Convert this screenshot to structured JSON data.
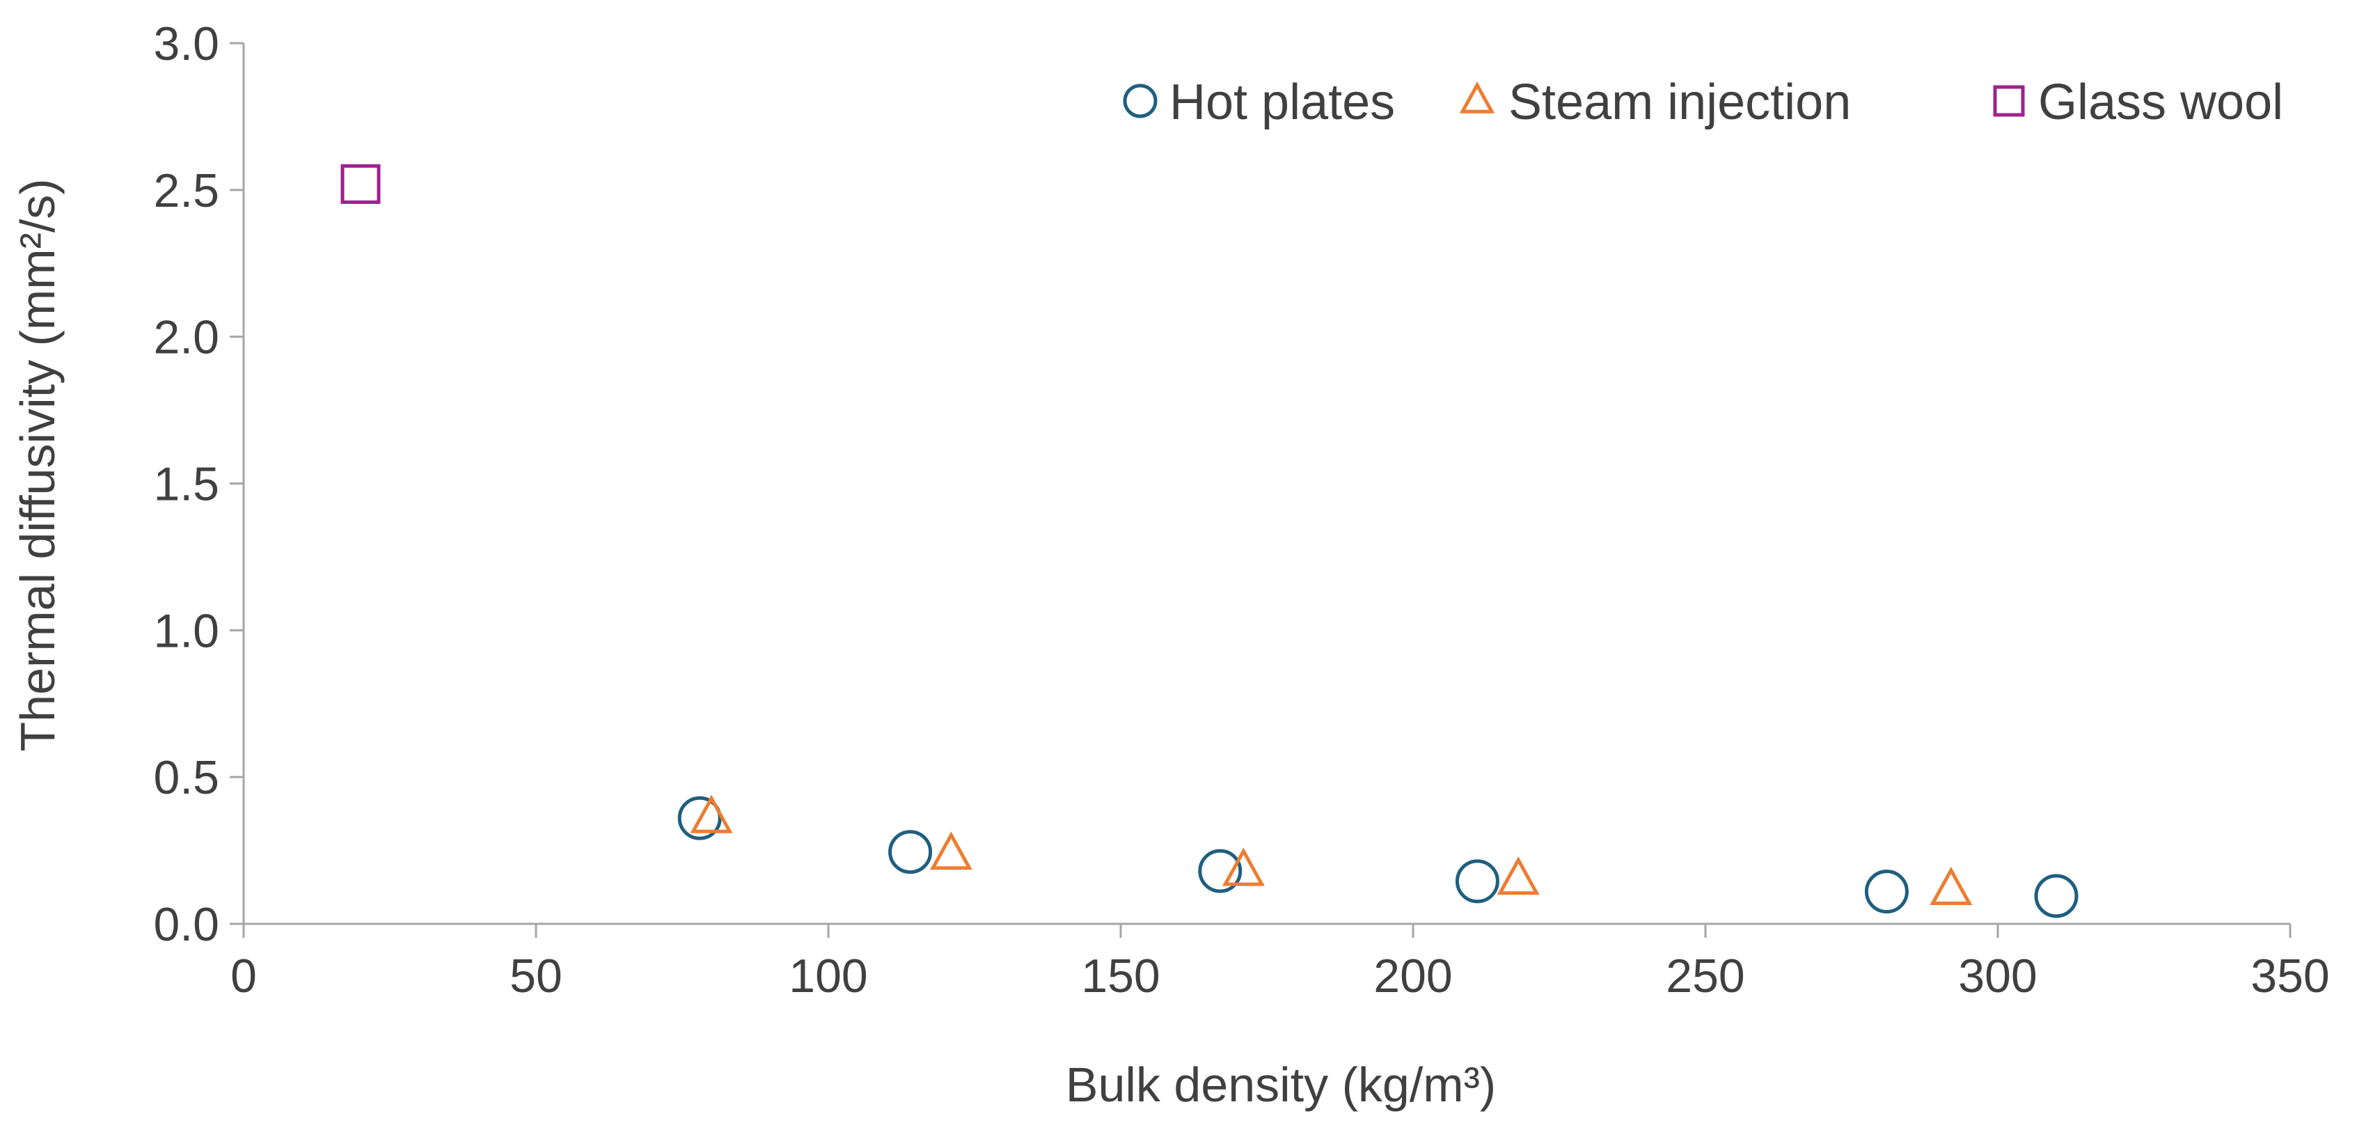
{
  "chart_data": {
    "type": "scatter",
    "title": "",
    "xlabel": "Bulk density (kg/m³)",
    "ylabel": "Thermal diffusivity (mm²/s)",
    "xlim": [
      0,
      350
    ],
    "ylim": [
      0,
      3.0
    ],
    "xticks": [
      0,
      50,
      100,
      150,
      200,
      250,
      300,
      350
    ],
    "yticks": [
      0.0,
      0.5,
      1.0,
      1.5,
      2.0,
      2.5,
      3.0
    ],
    "xtick_labels": [
      "0",
      "50",
      "100",
      "150",
      "200",
      "250",
      "300",
      "350"
    ],
    "ytick_labels": [
      "0.0",
      "0.5",
      "1.0",
      "1.5",
      "2.0",
      "2.5",
      "3.0"
    ],
    "grid": false,
    "legend_position": "top-right",
    "series": [
      {
        "name": "Hot plates",
        "marker": "circle",
        "color": "#1f5f7f",
        "x": [
          78,
          114,
          167,
          211,
          281,
          310
        ],
        "y": [
          0.36,
          0.245,
          0.18,
          0.145,
          0.11,
          0.095
        ]
      },
      {
        "name": "Steam injection",
        "marker": "triangle",
        "color": "#ed7d31",
        "x": [
          80,
          121,
          171,
          218,
          292
        ],
        "y": [
          0.36,
          0.235,
          0.18,
          0.15,
          0.115
        ]
      },
      {
        "name": "Glass wool",
        "marker": "square",
        "color": "#a0218f",
        "x": [
          20
        ],
        "y": [
          2.52
        ]
      }
    ]
  }
}
